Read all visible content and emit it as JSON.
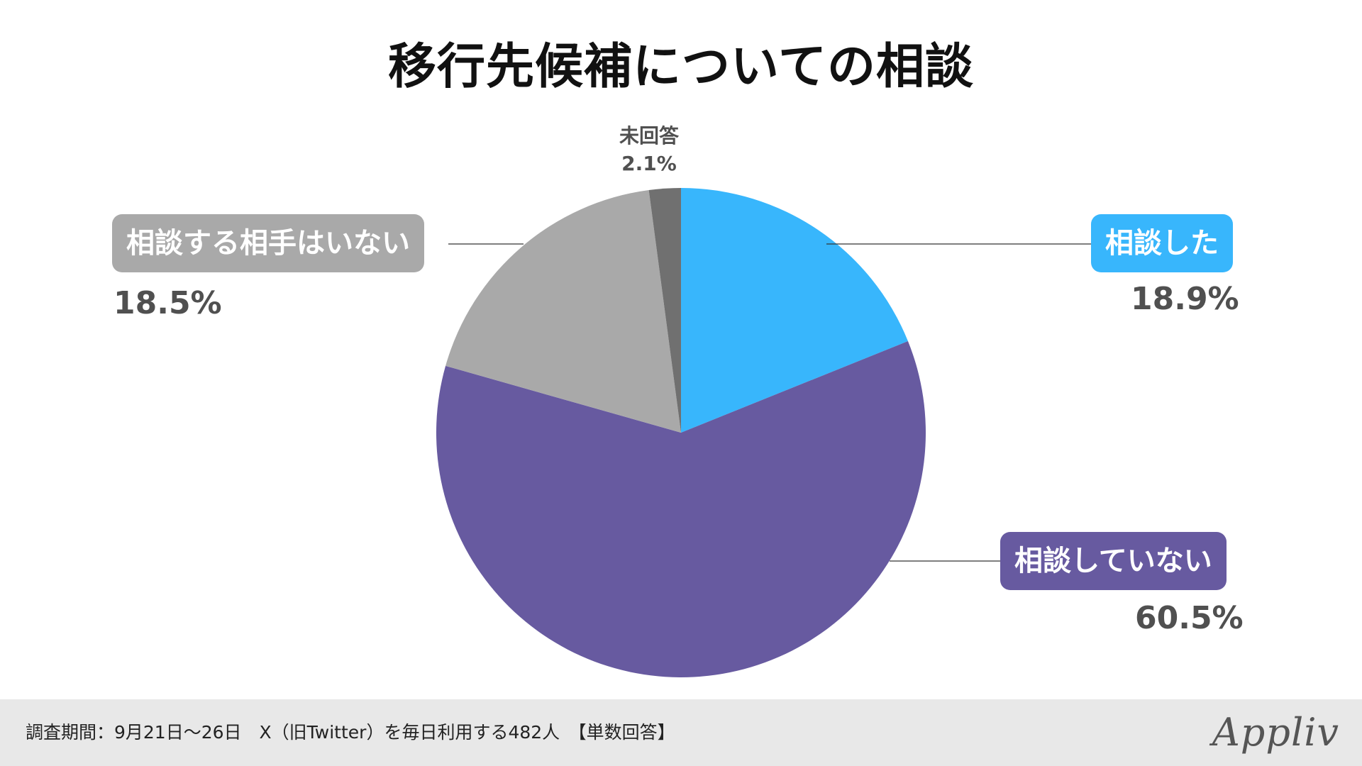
{
  "chart_data": {
    "type": "pie",
    "title": "移行先候補についての相談",
    "slices": [
      {
        "label": "相談した",
        "value": 18.9,
        "value_label": "18.9%",
        "color": "#38b6fc"
      },
      {
        "label": "相談していない",
        "value": 60.5,
        "value_label": "60.5%",
        "color": "#675aa0"
      },
      {
        "label": "相談する相手はいない",
        "value": 18.5,
        "value_label": "18.5%",
        "color": "#a9a9a9"
      },
      {
        "label": "未回答",
        "value": 2.1,
        "value_label": "2.1%",
        "color": "#707070"
      }
    ],
    "start_angle": "12 o'clock",
    "direction": "clockwise"
  },
  "footer": {
    "note": "調査期間：9月21日〜26日　X（旧Twitter）を毎日利用する482人　【単数回答】",
    "logo": "Appliv"
  }
}
